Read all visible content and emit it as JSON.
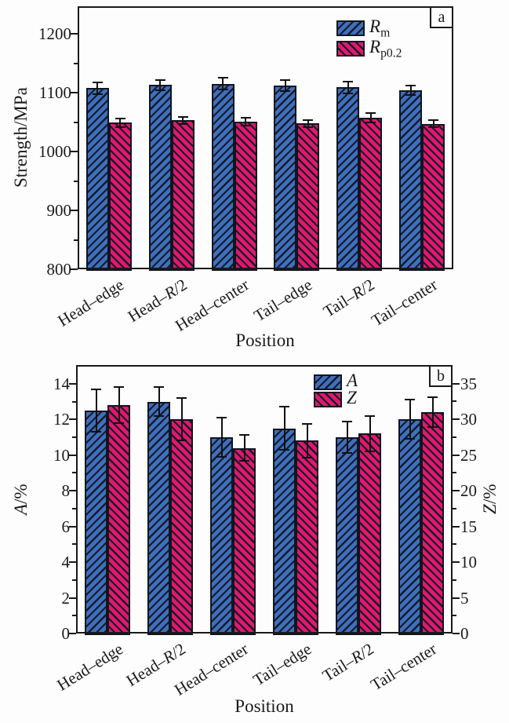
{
  "figure_title": "",
  "chart_data": [
    {
      "panel_label": "a",
      "type": "bar",
      "grid": false,
      "legend_position": "top-center-right-inside",
      "xlabel": "Position",
      "categories": [
        [
          {
            "t": "Head–edge"
          }
        ],
        [
          {
            "t": "Head–"
          },
          {
            "t": "R",
            "i": true
          },
          {
            "t": "/2"
          }
        ],
        [
          {
            "t": "Head–center"
          }
        ],
        [
          {
            "t": "Tail–edge"
          }
        ],
        [
          {
            "t": "Tail–"
          },
          {
            "t": "R",
            "i": true
          },
          {
            "t": "/2"
          }
        ],
        [
          {
            "t": "Tail–center"
          }
        ]
      ],
      "axes": {
        "left": {
          "label": [
            {
              "t": "Strength/MPa"
            }
          ],
          "lim": [
            800,
            1247
          ],
          "ticks": [
            800,
            900,
            1000,
            1100,
            1200
          ],
          "minor_step": 50
        }
      },
      "series": [
        {
          "name": [
            {
              "t": "R",
              "i": true
            },
            {
              "t": "m",
              "sub": true
            }
          ],
          "axis": "left",
          "color": "#3f6fbd",
          "hatch": "/",
          "values": [
            1108,
            1113,
            1115,
            1112,
            1109,
            1104
          ],
          "errors": [
            10,
            9,
            10,
            9,
            10,
            8
          ]
        },
        {
          "name": [
            {
              "t": "R",
              "i": true
            },
            {
              "t": "p0.2",
              "sub": true
            }
          ],
          "axis": "left",
          "color": "#e2176d",
          "hatch": "\\",
          "values": [
            1049,
            1053,
            1051,
            1048,
            1057,
            1047
          ],
          "errors": [
            7,
            6,
            7,
            6,
            8,
            6
          ]
        }
      ]
    },
    {
      "panel_label": "b",
      "type": "bar",
      "grid": false,
      "legend_position": "top-center-right-inside",
      "xlabel": "Position",
      "categories": [
        [
          {
            "t": "Head–edge"
          }
        ],
        [
          {
            "t": "Head–"
          },
          {
            "t": "R",
            "i": true
          },
          {
            "t": "/2"
          }
        ],
        [
          {
            "t": "Head–center"
          }
        ],
        [
          {
            "t": "Tail–edge"
          }
        ],
        [
          {
            "t": "Tail–"
          },
          {
            "t": "R",
            "i": true
          },
          {
            "t": "/2"
          }
        ],
        [
          {
            "t": "Tail–center"
          }
        ]
      ],
      "axes": {
        "left": {
          "label": [
            {
              "t": "A",
              "i": true
            },
            {
              "t": "/%"
            }
          ],
          "lim": [
            0,
            15.05
          ],
          "ticks": [
            0,
            2,
            4,
            6,
            8,
            10,
            12,
            14
          ],
          "minor_step": 1
        },
        "right": {
          "label": [
            {
              "t": "Z",
              "i": true
            },
            {
              "t": "/%"
            }
          ],
          "lim": [
            0,
            37.6
          ],
          "ticks": [
            0,
            5,
            10,
            15,
            20,
            25,
            30,
            35
          ],
          "minor_step": 2.5
        }
      },
      "series": [
        {
          "name": [
            {
              "t": "A",
              "i": true
            }
          ],
          "axis": "left",
          "color": "#3f6fbd",
          "hatch": "/",
          "values": [
            12.5,
            13.0,
            11.0,
            11.5,
            11.0,
            12.0
          ],
          "errors": [
            1.2,
            0.8,
            1.1,
            1.2,
            0.9,
            1.1
          ]
        },
        {
          "name": [
            {
              "t": "Z",
              "i": true
            }
          ],
          "axis": "right",
          "color": "#e2176d",
          "hatch": "\\",
          "values": [
            32,
            30,
            26,
            27,
            28,
            31
          ],
          "errors": [
            2.5,
            3.0,
            1.8,
            2.4,
            2.5,
            2.1
          ]
        }
      ]
    }
  ]
}
